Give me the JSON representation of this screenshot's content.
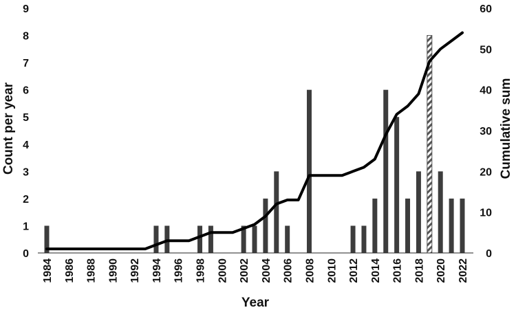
{
  "chart_data": {
    "type": "bar",
    "title": "",
    "xlabel": "Year",
    "ylabel": "Count per year",
    "y2label": "Cumulative sum",
    "ylim": [
      0,
      9
    ],
    "y2lim": [
      0,
      60
    ],
    "yticks": [
      0,
      1,
      2,
      3,
      4,
      5,
      6,
      7,
      8,
      9
    ],
    "y2ticks": [
      0,
      10,
      20,
      30,
      40,
      50,
      60
    ],
    "xlim": [
      1984,
      2022
    ],
    "xticks": [
      1984,
      1986,
      1988,
      1990,
      1992,
      1994,
      1996,
      1998,
      2000,
      2002,
      2004,
      2006,
      2008,
      2010,
      2012,
      2014,
      2016,
      2018,
      2020,
      2022
    ],
    "grid": false,
    "legend": "none",
    "colors": {
      "bars": "#3d3d3d",
      "line": "#000000",
      "hatched_bar": "#555555"
    },
    "series": [
      {
        "type": "bar",
        "axis": "left",
        "x": [
          1984,
          1994,
          1995,
          1998,
          1999,
          2002,
          2003,
          2004,
          2005,
          2006,
          2008,
          2012,
          2013,
          2014,
          2015,
          2016,
          2017,
          2018,
          2019,
          2020,
          2021,
          2022
        ],
        "values": [
          1,
          1,
          1,
          1,
          1,
          1,
          1,
          2,
          3,
          1,
          6,
          1,
          1,
          2,
          6,
          5,
          2,
          3,
          8,
          3,
          2,
          2
        ],
        "hatched": [
          false,
          false,
          false,
          false,
          false,
          false,
          false,
          false,
          false,
          false,
          false,
          false,
          false,
          false,
          false,
          false,
          false,
          false,
          true,
          false,
          false,
          false
        ]
      },
      {
        "type": "line",
        "axis": "right",
        "x": [
          1984,
          1993,
          1994,
          1995,
          1997,
          1998,
          1999,
          2001,
          2002,
          2003,
          2004,
          2005,
          2006,
          2007,
          2008,
          2011,
          2012,
          2013,
          2014,
          2015,
          2016,
          2017,
          2018,
          2019,
          2020,
          2021,
          2022
        ],
        "values": [
          1,
          1,
          2,
          3,
          3,
          4,
          5,
          5,
          6,
          7,
          9,
          12,
          13,
          13,
          19,
          19,
          20,
          21,
          23,
          29,
          34,
          36,
          39,
          47,
          50,
          52,
          54
        ]
      }
    ]
  }
}
